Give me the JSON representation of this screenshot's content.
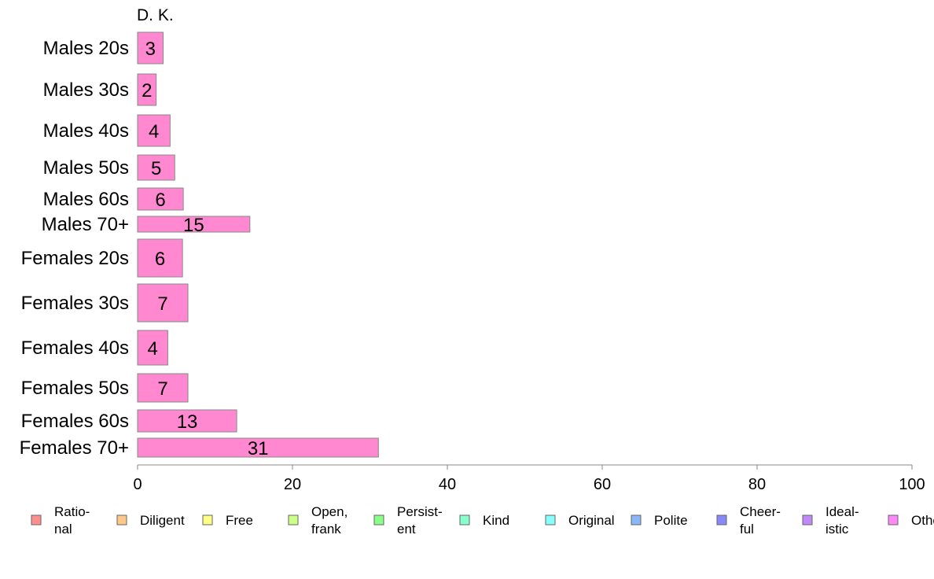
{
  "chart_data": {
    "type": "bar",
    "orientation": "horizontal",
    "title": "D. K.",
    "categories": [
      "Males 20s",
      "Males 30s",
      "Males 40s",
      "Males 50s",
      "Males 60s",
      "Males 70+",
      "Females 20s",
      "Females 30s",
      "Females 40s",
      "Females 50s",
      "Females 60s",
      "Females 70+"
    ],
    "series": [
      {
        "values": [
          3,
          2,
          4,
          5,
          6,
          15,
          6,
          7,
          4,
          7,
          13,
          31
        ],
        "color": "#ff88d0"
      }
    ],
    "bar_values_display": [
      3.3,
      2.4,
      4.2,
      4.8,
      5.9,
      14.5,
      5.8,
      6.5,
      3.9,
      6.5,
      12.8,
      31.1
    ],
    "bar_thickness_relative": [
      1.0,
      1.0,
      1.0,
      0.8,
      0.7,
      0.5,
      1.2,
      1.2,
      1.1,
      0.9,
      0.7,
      0.6
    ],
    "xlim": [
      0,
      100
    ],
    "xticks": [
      0,
      20,
      40,
      60,
      80,
      100
    ],
    "grid": false,
    "legend_position": "bottom",
    "legend": [
      {
        "lines": [
          "Ratio-",
          "nal"
        ],
        "color": "#ff8f8f"
      },
      {
        "lines": [
          "Diligent"
        ],
        "color": "#ffc78a"
      },
      {
        "lines": [
          "Free"
        ],
        "color": "#ffff88"
      },
      {
        "lines": [
          "Open,",
          "frank"
        ],
        "color": "#ccff88"
      },
      {
        "lines": [
          "Persist-",
          "ent"
        ],
        "color": "#88ff88"
      },
      {
        "lines": [
          "Kind"
        ],
        "color": "#88ffcc"
      },
      {
        "lines": [
          "Original"
        ],
        "color": "#88ffff"
      },
      {
        "lines": [
          "Polite"
        ],
        "color": "#88b8f8"
      },
      {
        "lines": [
          "Cheer-",
          "ful"
        ],
        "color": "#8888f8"
      },
      {
        "lines": [
          "Ideal-",
          "istic"
        ],
        "color": "#c088f8"
      },
      {
        "lines": [
          "Other"
        ],
        "color": "#ff88f8"
      }
    ]
  }
}
